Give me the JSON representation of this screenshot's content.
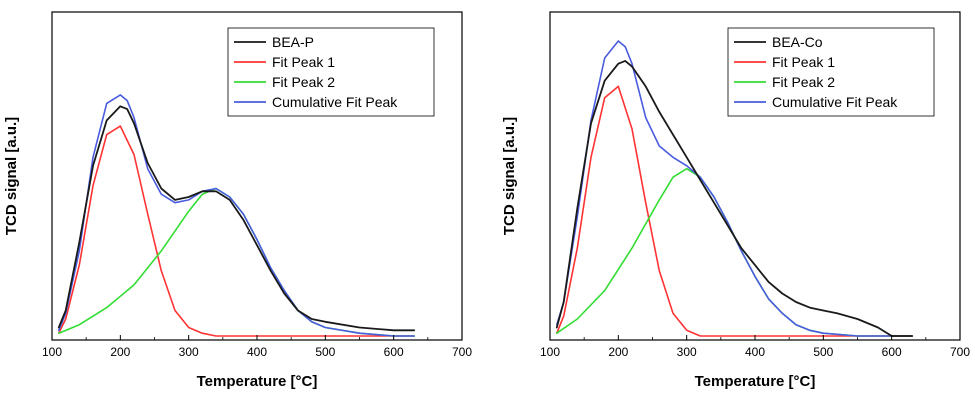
{
  "chart_data": [
    {
      "type": "line",
      "xlabel": "Temperature [°C]",
      "ylabel": "TCD signal [a.u.]",
      "xlim": [
        100,
        700
      ],
      "xticks": [
        100,
        200,
        300,
        400,
        500,
        600,
        700
      ],
      "yticks_shown": false,
      "legend_position": "top-right",
      "series": [
        {
          "name": "BEA-P",
          "color": "#1a1a1a",
          "x": [
            110,
            120,
            140,
            160,
            180,
            200,
            210,
            220,
            240,
            260,
            280,
            300,
            320,
            340,
            360,
            380,
            400,
            420,
            440,
            460,
            480,
            500,
            550,
            600,
            630
          ],
          "y": [
            0.03,
            0.09,
            0.33,
            0.6,
            0.76,
            0.81,
            0.8,
            0.75,
            0.61,
            0.52,
            0.48,
            0.49,
            0.51,
            0.51,
            0.48,
            0.41,
            0.32,
            0.23,
            0.15,
            0.09,
            0.06,
            0.05,
            0.03,
            0.02,
            0.02
          ]
        },
        {
          "name": "Fit Peak 1",
          "color": "#ff3333",
          "x": [
            110,
            120,
            140,
            160,
            180,
            200,
            220,
            240,
            260,
            280,
            300,
            320,
            340,
            360,
            400,
            500,
            600,
            630
          ],
          "y": [
            0.01,
            0.06,
            0.25,
            0.53,
            0.71,
            0.74,
            0.64,
            0.43,
            0.23,
            0.09,
            0.03,
            0.01,
            0.0,
            0.0,
            0.0,
            0.0,
            0.0,
            0.0
          ]
        },
        {
          "name": "Fit Peak 2",
          "color": "#33dd33",
          "x": [
            110,
            140,
            180,
            220,
            260,
            300,
            320,
            340,
            360,
            380,
            400,
            420,
            440,
            460,
            480,
            500,
            550,
            600,
            630
          ],
          "y": [
            0.01,
            0.04,
            0.1,
            0.18,
            0.3,
            0.44,
            0.5,
            0.52,
            0.49,
            0.43,
            0.34,
            0.24,
            0.16,
            0.09,
            0.05,
            0.03,
            0.01,
            0.0,
            0.0
          ]
        },
        {
          "name": "Cumulative Fit Peak",
          "color": "#4a5be0",
          "x": [
            110,
            120,
            140,
            160,
            180,
            200,
            210,
            220,
            240,
            260,
            280,
            300,
            320,
            340,
            360,
            380,
            400,
            420,
            440,
            460,
            480,
            500,
            550,
            600,
            630
          ],
          "y": [
            0.02,
            0.08,
            0.3,
            0.63,
            0.82,
            0.85,
            0.83,
            0.77,
            0.59,
            0.5,
            0.47,
            0.48,
            0.51,
            0.52,
            0.49,
            0.43,
            0.34,
            0.24,
            0.16,
            0.09,
            0.05,
            0.03,
            0.01,
            0.0,
            0.0
          ]
        }
      ]
    },
    {
      "type": "line",
      "xlabel": "Temperature [°C]",
      "ylabel": "TCD signal [a.u.]",
      "xlim": [
        100,
        700
      ],
      "xticks": [
        100,
        200,
        300,
        400,
        500,
        600,
        700
      ],
      "yticks_shown": false,
      "legend_position": "top-right",
      "series": [
        {
          "name": "BEA-Co",
          "color": "#1a1a1a",
          "x": [
            110,
            120,
            140,
            160,
            180,
            200,
            210,
            220,
            240,
            260,
            280,
            300,
            320,
            340,
            360,
            380,
            400,
            420,
            440,
            460,
            480,
            500,
            520,
            550,
            580,
            600,
            630
          ],
          "y": [
            0.03,
            0.12,
            0.45,
            0.75,
            0.9,
            0.96,
            0.97,
            0.95,
            0.88,
            0.79,
            0.71,
            0.63,
            0.55,
            0.47,
            0.39,
            0.31,
            0.25,
            0.19,
            0.15,
            0.12,
            0.1,
            0.09,
            0.08,
            0.06,
            0.03,
            0.0,
            0.0
          ]
        },
        {
          "name": "Fit Peak 1",
          "color": "#ff3333",
          "x": [
            110,
            120,
            140,
            160,
            180,
            200,
            220,
            240,
            260,
            280,
            300,
            320,
            340,
            360,
            400,
            500,
            600,
            630
          ],
          "y": [
            0.01,
            0.07,
            0.31,
            0.63,
            0.84,
            0.88,
            0.73,
            0.47,
            0.23,
            0.08,
            0.02,
            0.0,
            0.0,
            0.0,
            0.0,
            0.0,
            0.0,
            0.0
          ]
        },
        {
          "name": "Fit Peak 2",
          "color": "#33dd33",
          "x": [
            110,
            140,
            180,
            220,
            260,
            280,
            300,
            320,
            340,
            360,
            380,
            400,
            420,
            440,
            460,
            480,
            500,
            550,
            600,
            630
          ],
          "y": [
            0.01,
            0.06,
            0.16,
            0.31,
            0.48,
            0.56,
            0.59,
            0.56,
            0.49,
            0.4,
            0.3,
            0.21,
            0.13,
            0.08,
            0.04,
            0.02,
            0.01,
            0.0,
            0.0,
            0.0
          ]
        },
        {
          "name": "Cumulative Fit Peak",
          "color": "#4a5be0",
          "x": [
            110,
            120,
            140,
            160,
            180,
            200,
            210,
            220,
            240,
            260,
            280,
            300,
            320,
            340,
            360,
            380,
            400,
            420,
            440,
            460,
            480,
            500,
            550,
            600,
            630
          ],
          "y": [
            0.04,
            0.12,
            0.42,
            0.76,
            0.98,
            1.04,
            1.02,
            0.96,
            0.77,
            0.67,
            0.63,
            0.6,
            0.56,
            0.49,
            0.4,
            0.3,
            0.21,
            0.13,
            0.08,
            0.04,
            0.02,
            0.01,
            0.0,
            0.0,
            0.0
          ]
        }
      ]
    }
  ]
}
